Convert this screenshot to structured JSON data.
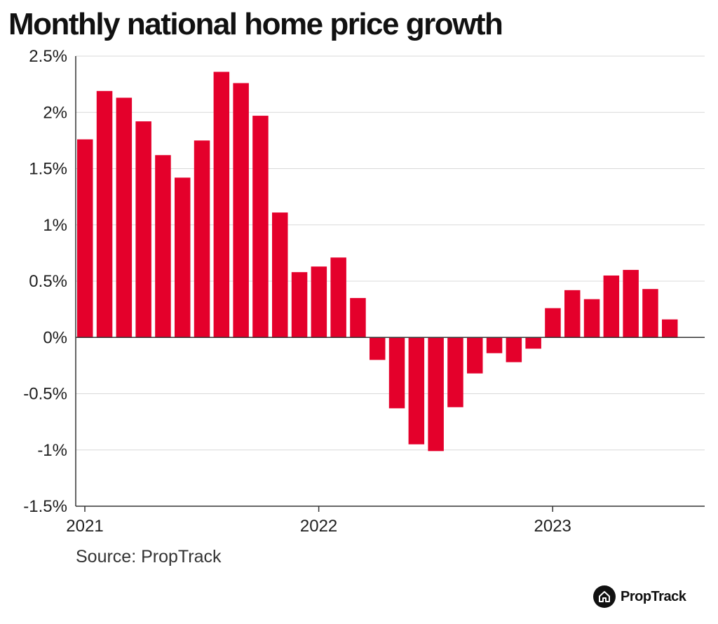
{
  "title": "Monthly national home price growth",
  "source": "Source: PropTrack",
  "logo_text": "PropTrack",
  "logo_icon": "house-icon",
  "colors": {
    "bar": "#e4002b",
    "grid": "#d9d9d9",
    "axis": "#333333"
  },
  "chart_data": {
    "type": "bar",
    "title": "Monthly national home price growth",
    "xlabel": "",
    "ylabel": "",
    "ylim": [
      -1.5,
      2.5
    ],
    "y_ticks": [
      2.5,
      2,
      1.5,
      1,
      0.5,
      0,
      -0.5,
      -1,
      -1.5
    ],
    "y_tick_labels": [
      "2.5%",
      "2%",
      "1.5%",
      "1%",
      "0.5%",
      "0%",
      "-0.5%",
      "-1%",
      "-1.5%"
    ],
    "x_tick_labels": [
      "2021",
      "2022",
      "2023"
    ],
    "categories": [
      "2021-01",
      "2021-02",
      "2021-03",
      "2021-04",
      "2021-05",
      "2021-06",
      "2021-07",
      "2021-08",
      "2021-09",
      "2021-10",
      "2021-11",
      "2021-12",
      "2022-01",
      "2022-02",
      "2022-03",
      "2022-04",
      "2022-05",
      "2022-06",
      "2022-07",
      "2022-08",
      "2022-09",
      "2022-10",
      "2022-11",
      "2022-12",
      "2023-01",
      "2023-02",
      "2023-03",
      "2023-04",
      "2023-05",
      "2023-06",
      "2023-07",
      "2023-08"
    ],
    "values": [
      1.76,
      2.19,
      2.13,
      1.92,
      1.62,
      1.42,
      1.75,
      2.36,
      2.26,
      1.97,
      1.11,
      0.58,
      0.63,
      0.71,
      0.35,
      -0.2,
      -0.63,
      -0.95,
      -1.01,
      -0.62,
      -0.32,
      -0.14,
      -0.22,
      -0.1,
      0.26,
      0.42,
      0.34,
      0.55,
      0.6,
      0.43,
      0.16,
      null
    ],
    "grid": true,
    "legend": "none"
  }
}
